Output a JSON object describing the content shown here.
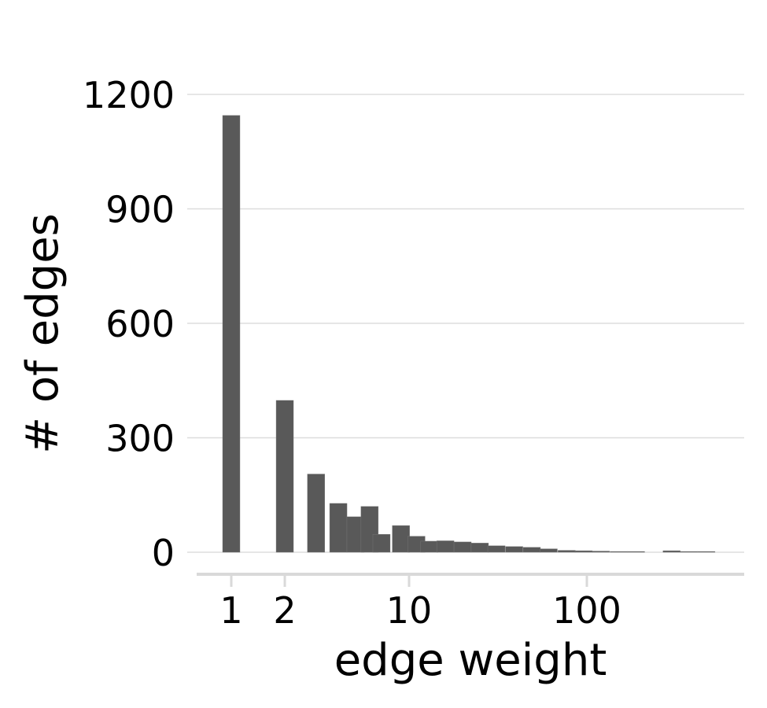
{
  "chart_data": {
    "type": "bar",
    "xlabel": "edge weight",
    "ylabel": "# of edges",
    "x_scale": "log",
    "x_ticks": [
      1,
      2,
      10,
      100
    ],
    "x_tick_labels": [
      "1",
      "2",
      "10",
      "100"
    ],
    "y_ticks": [
      0,
      300,
      600,
      900,
      1200
    ],
    "y_tick_labels": [
      "0",
      "300",
      "600",
      "900",
      "1200"
    ],
    "ylim": [
      0,
      1200
    ],
    "grid": "horizontal",
    "bar_color": "#595959",
    "bins": [
      {
        "x": 1,
        "value": 1145
      },
      {
        "x": 2,
        "value": 398
      },
      {
        "x": 3,
        "value": 205
      },
      {
        "x": 4,
        "value": 128
      },
      {
        "x": 5,
        "value": 93
      },
      {
        "x": 6,
        "value": 120
      },
      {
        "x": 7,
        "value": 47
      },
      {
        "x": 9,
        "value": 70
      },
      {
        "x": 11,
        "value": 42
      },
      {
        "x": 13,
        "value": 29
      },
      {
        "x": 16,
        "value": 30
      },
      {
        "x": 20,
        "value": 27
      },
      {
        "x": 25,
        "value": 24
      },
      {
        "x": 31,
        "value": 17
      },
      {
        "x": 39,
        "value": 15
      },
      {
        "x": 49,
        "value": 13
      },
      {
        "x": 61,
        "value": 9
      },
      {
        "x": 77,
        "value": 5
      },
      {
        "x": 96,
        "value": 4
      },
      {
        "x": 120,
        "value": 3
      },
      {
        "x": 151,
        "value": 2
      },
      {
        "x": 189,
        "value": 2
      },
      {
        "x": 300,
        "value": 4
      },
      {
        "x": 375,
        "value": 2
      },
      {
        "x": 470,
        "value": 2
      }
    ]
  }
}
